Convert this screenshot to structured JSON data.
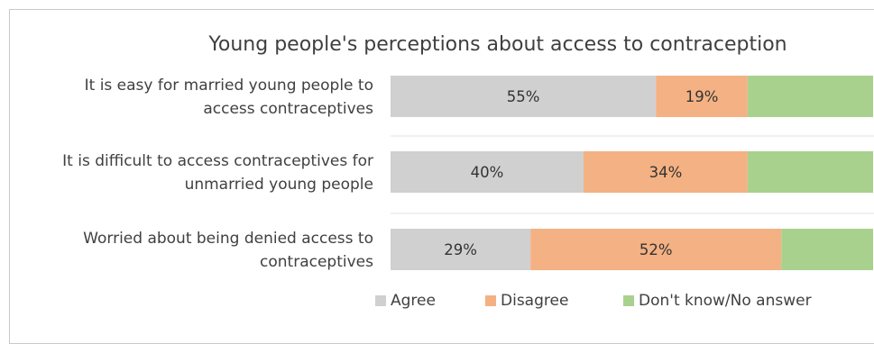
{
  "chart_data": {
    "type": "bar",
    "orientation": "horizontal",
    "stacked": true,
    "title": "Young people's perceptions about access to contraception",
    "categories": [
      [
        "It is easy for married young people to",
        "access contraceptives"
      ],
      [
        "It is difficult to access contraceptives for",
        "unmarried young people"
      ],
      [
        "Worried about being denied access to",
        "contraceptives"
      ]
    ],
    "series": [
      {
        "name": "Agree",
        "color": "#d0d0d0",
        "values": [
          55,
          40,
          29
        ],
        "labels": [
          "55%",
          "40%",
          "29%"
        ]
      },
      {
        "name": "Disagree",
        "color": "#f4b183",
        "values": [
          19,
          34,
          52
        ],
        "labels": [
          "19%",
          "34%",
          "52%"
        ]
      },
      {
        "name": "Don't know/No answer",
        "color": "#a9d18e",
        "values": [
          26,
          26,
          19
        ],
        "labels": [
          "",
          "",
          ""
        ]
      }
    ],
    "xlim": [
      0,
      100
    ],
    "legend_position": "bottom"
  }
}
